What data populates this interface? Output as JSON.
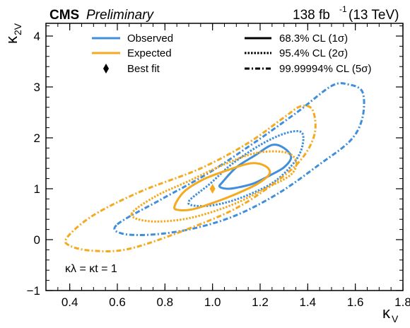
{
  "header": {
    "experiment": "CMS",
    "status": "Preliminary",
    "lumi_value": "138 fb",
    "lumi_exponent": "-1",
    "energy": "(13 TeV)"
  },
  "colors": {
    "observed": "#3f8fdc",
    "expected": "#f5a91e",
    "best_fit": "#f5a91e",
    "axis": "#000000"
  },
  "chart_data": {
    "type": "line",
    "xlabel": "κV",
    "ylabel": "κ2V",
    "xlim": [
      0.3,
      1.8
    ],
    "ylim": [
      -1,
      4.25
    ],
    "x_ticks": [
      0.4,
      0.6,
      0.8,
      1.0,
      1.2,
      1.4,
      1.6,
      1.8
    ],
    "x_tick_labels": [
      "0.4",
      "0.6",
      "0.8",
      "1.0",
      "1.2",
      "1.4",
      "1.6",
      "1.8"
    ],
    "y_ticks": [
      -1,
      0,
      1,
      2,
      3,
      4
    ],
    "y_tick_labels": [
      "−1",
      "0",
      "1",
      "2",
      "3",
      "4"
    ],
    "annotation": "κλ = κt = 1",
    "legend": {
      "placement": "top",
      "entries": [
        {
          "label": "Observed",
          "kind": "observed"
        },
        {
          "label": "Expected",
          "kind": "expected"
        },
        {
          "label": "Best fit",
          "kind": "marker"
        },
        {
          "label": "68.3% CL (1σ)",
          "kind": "style-solid"
        },
        {
          "label": "95.4% CL (2σ)",
          "kind": "style-dotted"
        },
        {
          "label": "99.99994% CL (5σ)",
          "kind": "style-dashdot"
        }
      ]
    },
    "best_fit": {
      "x": 1.0,
      "y": 1.0
    },
    "series": [
      {
        "group": "Observed",
        "cl": "68.3%",
        "style": "solid",
        "points": [
          [
            1.04,
            1.12
          ],
          [
            1.1,
            1.42
          ],
          [
            1.18,
            1.66
          ],
          [
            1.25,
            1.86
          ],
          [
            1.3,
            1.8
          ],
          [
            1.33,
            1.62
          ],
          [
            1.3,
            1.42
          ],
          [
            1.24,
            1.26
          ],
          [
            1.17,
            1.1
          ],
          [
            1.1,
            1.02
          ],
          [
            1.06,
            1.0
          ],
          [
            1.03,
            1.04
          ]
        ]
      },
      {
        "group": "Observed",
        "cl": "95.4%",
        "style": "dotted",
        "points": [
          [
            0.9,
            0.75
          ],
          [
            0.99,
            1.1
          ],
          [
            1.08,
            1.48
          ],
          [
            1.2,
            1.86
          ],
          [
            1.3,
            2.08
          ],
          [
            1.37,
            2.12
          ],
          [
            1.38,
            1.9
          ],
          [
            1.35,
            1.56
          ],
          [
            1.26,
            1.14
          ],
          [
            1.14,
            0.86
          ],
          [
            1.03,
            0.7
          ],
          [
            0.94,
            0.66
          ]
        ]
      },
      {
        "group": "Observed",
        "cl": "99.99994%",
        "style": "dashdot",
        "points": [
          [
            0.6,
            0.3
          ],
          [
            0.78,
            0.78
          ],
          [
            0.98,
            1.3
          ],
          [
            1.18,
            1.92
          ],
          [
            1.36,
            2.52
          ],
          [
            1.5,
            3.02
          ],
          [
            1.57,
            3.05
          ],
          [
            1.63,
            2.9
          ],
          [
            1.63,
            2.4
          ],
          [
            1.58,
            1.95
          ],
          [
            1.45,
            1.48
          ],
          [
            1.28,
            0.92
          ],
          [
            1.1,
            0.48
          ],
          [
            0.92,
            0.22
          ],
          [
            0.75,
            0.1
          ],
          [
            0.62,
            0.12
          ]
        ]
      },
      {
        "group": "Expected",
        "cl": "68.3%",
        "style": "solid",
        "points": [
          [
            0.84,
            0.65
          ],
          [
            0.88,
            0.94
          ],
          [
            0.96,
            1.18
          ],
          [
            1.06,
            1.36
          ],
          [
            1.16,
            1.5
          ],
          [
            1.22,
            1.45
          ],
          [
            1.24,
            1.3
          ],
          [
            1.19,
            1.1
          ],
          [
            1.1,
            0.9
          ],
          [
            1.0,
            0.72
          ],
          [
            0.92,
            0.6
          ],
          [
            0.86,
            0.58
          ]
        ]
      },
      {
        "group": "Expected",
        "cl": "95.4%",
        "style": "dotted",
        "points": [
          [
            0.66,
            0.5
          ],
          [
            0.76,
            0.85
          ],
          [
            0.9,
            1.15
          ],
          [
            1.05,
            1.48
          ],
          [
            1.18,
            1.7
          ],
          [
            1.3,
            1.72
          ],
          [
            1.35,
            1.56
          ],
          [
            1.33,
            1.28
          ],
          [
            1.22,
            1.0
          ],
          [
            1.08,
            0.68
          ],
          [
            0.9,
            0.42
          ],
          [
            0.74,
            0.36
          ]
        ]
      },
      {
        "group": "Expected",
        "cl": "99.99994%",
        "style": "dashdot",
        "points": [
          [
            0.39,
            0.05
          ],
          [
            0.5,
            0.48
          ],
          [
            0.7,
            0.95
          ],
          [
            0.95,
            1.4
          ],
          [
            1.15,
            1.9
          ],
          [
            1.3,
            2.4
          ],
          [
            1.37,
            2.62
          ],
          [
            1.42,
            2.55
          ],
          [
            1.43,
            2.1
          ],
          [
            1.38,
            1.62
          ],
          [
            1.28,
            1.18
          ],
          [
            1.1,
            0.62
          ],
          [
            0.88,
            0.18
          ],
          [
            0.65,
            -0.18
          ],
          [
            0.5,
            -0.22
          ],
          [
            0.4,
            -0.12
          ]
        ]
      }
    ]
  }
}
